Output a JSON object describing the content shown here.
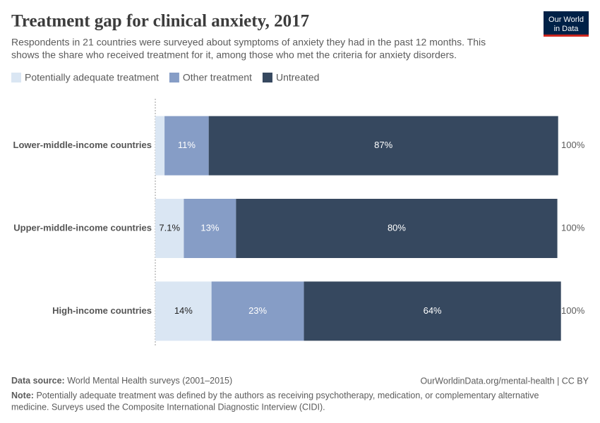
{
  "chart_data": {
    "type": "stacked-bar-horizontal",
    "title": "Treatment gap for clinical anxiety, 2017",
    "subtitle": [
      "Respondents in 21 countries were surveyed about symptoms of anxiety they had in the past 12 months. This",
      "shows the share who received treatment for it, among those who met the criteria for anxiety disorders."
    ],
    "logo": [
      "Our World",
      "in Data"
    ],
    "categories": [
      "Lower-middle-income countries",
      "Upper-middle-income countries",
      "High-income countries"
    ],
    "series": [
      {
        "name": "Potentially adequate treatment",
        "color": "#dae6f3",
        "values": [
          2.3,
          7.1,
          14
        ],
        "value_labels": [
          null,
          "7.1%",
          "14%"
        ]
      },
      {
        "name": "Other treatment",
        "color": "#869dc6",
        "values": [
          11,
          13,
          23
        ],
        "value_labels": [
          "11%",
          "13%",
          "23%"
        ]
      },
      {
        "name": "Untreated",
        "color": "#36485f",
        "values": [
          87,
          80,
          64
        ],
        "value_labels": [
          "87%",
          "80%",
          "64%"
        ]
      }
    ],
    "total_labels": [
      "100%",
      "100%",
      "100%"
    ],
    "xlim": [
      0,
      100
    ],
    "source_label": "Data source:",
    "source": "World Mental Health surveys (2001–2015)",
    "url": "OurWorldinData.org/mental-health | CC BY",
    "note_label": "Note:",
    "note": [
      "Potentially adequate treatment was defined by the authors as receiving psychotherapy, medication, or complementary alternative",
      "medicine. Surveys used the Composite International Diagnostic Interview (CIDI)."
    ]
  }
}
